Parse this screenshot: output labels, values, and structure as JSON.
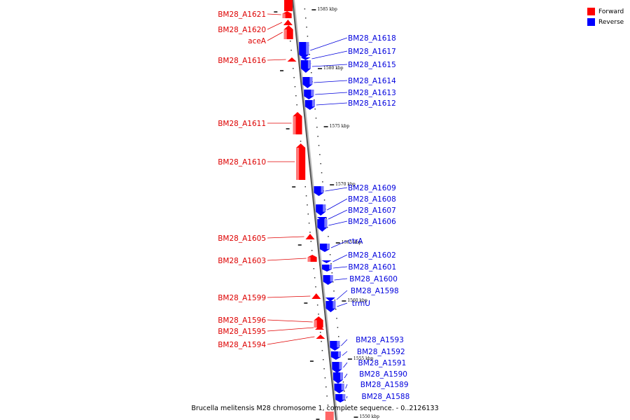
{
  "legend": {
    "forward_label": "Forward",
    "reverse_label": "Reverse",
    "forward_color": "#ff0000",
    "reverse_color": "#0000ff"
  },
  "caption": "Brucella melitensis M28 chromosome 1, complete sequence. - 0..2126133",
  "ticks": [
    "1585 kbp",
    "1580 kbp",
    "1575 kbp",
    "1570 kbp",
    "1565 kbp",
    "1560 kbp",
    "1555 kbp",
    "1550 kbp"
  ],
  "forward_genes": [
    "BM28_A1621",
    "BM28_A1620",
    "aceA",
    "BM28_A1616",
    "BM28_A1611",
    "BM28_A1610",
    "BM28_A1605",
    "BM28_A1603",
    "BM28_A1599",
    "BM28_A1596",
    "BM28_A1595",
    "BM28_A1594"
  ],
  "reverse_genes": [
    "BM28_A1618",
    "BM28_A1617",
    "BM28_A1615",
    "BM28_A1614",
    "BM28_A1613",
    "BM28_A1612",
    "BM28_A1609",
    "BM28_A1608",
    "BM28_A1607",
    "BM28_A1606",
    "ctrA",
    "BM28_A1602",
    "BM28_A1601",
    "BM28_A1600",
    "BM28_A1598",
    "trmU",
    "BM28_A1593",
    "BM28_A1592",
    "BM28_A1591",
    "BM28_A1590",
    "BM28_A1589",
    "BM28_A1588"
  ]
}
